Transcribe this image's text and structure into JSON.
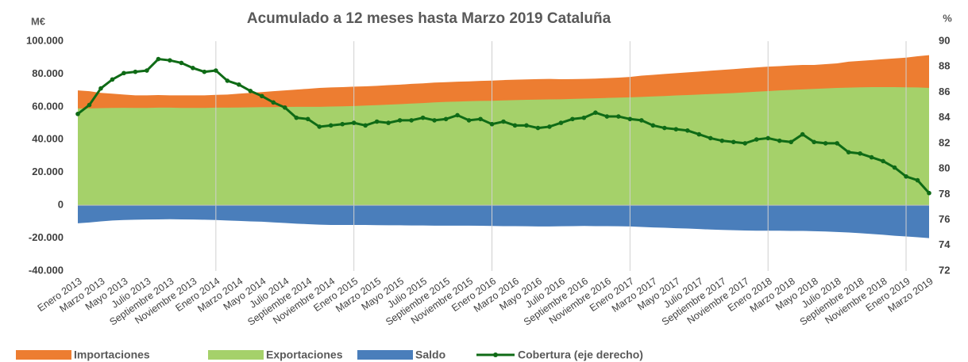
{
  "chart_data": {
    "type": "area-line",
    "title": "Acumulado a 12 meses hasta Marzo 2019 Cataluña",
    "y_label": "M€",
    "y2_label": "%",
    "categories": [
      "Enero 2013",
      null,
      "Marzo 2013",
      null,
      "Mayo 2013",
      null,
      "Julio 2013",
      null,
      "Septiembre 2013",
      null,
      "Noviembre 2013",
      null,
      "Enero 2014",
      null,
      "Marzo 2014",
      null,
      "Mayo 2014",
      null,
      "Julio 2014",
      null,
      "Septiembre 2014",
      null,
      "Noviembre 2014",
      null,
      "Enero 2015",
      null,
      "Marzo 2015",
      null,
      "Mayo 2015",
      null,
      "Julio 2015",
      null,
      "Septiembre 2015",
      null,
      "Noviembre 2015",
      null,
      "Enero 2016",
      null,
      "Marzo 2016",
      null,
      "Mayo 2016",
      null,
      "Julio 2016",
      null,
      "Septiembre 2016",
      null,
      "Noviembre 2016",
      null,
      "Enero 2017",
      null,
      "Marzo 2017",
      null,
      "Mayo 2017",
      null,
      "Julio 2017",
      null,
      "Septiembre 2017",
      null,
      "Noviembre 2017",
      null,
      "Enero 2018",
      null,
      "Marzo 2018",
      null,
      "Mayo 2018",
      null,
      "Julio 2018",
      null,
      "Septiembre 2018",
      null,
      "Noviembre 2018",
      null,
      "Enero 2019",
      null,
      "Marzo 2019"
    ],
    "series": [
      {
        "name": "Importaciones",
        "color": "#ed7d31",
        "kind": "area",
        "values": [
          70000,
          69500,
          68500,
          68000,
          67500,
          67000,
          67000,
          67200,
          67000,
          67000,
          67000,
          67000,
          67300,
          67500,
          68000,
          68500,
          69000,
          69500,
          70000,
          70500,
          71000,
          71500,
          71800,
          72000,
          72300,
          72500,
          72800,
          73200,
          73500,
          74000,
          74300,
          74800,
          75000,
          75300,
          75500,
          75800,
          76000,
          76300,
          76500,
          76700,
          76900,
          77000,
          76800,
          76900,
          77000,
          77200,
          77500,
          77800,
          78200,
          79000,
          79500,
          80000,
          80500,
          81000,
          81500,
          82000,
          82500,
          83000,
          83500,
          84000,
          84500,
          84800,
          85200,
          85500,
          85500,
          86000,
          86500,
          87500,
          88000,
          88500,
          89000,
          89500,
          90000,
          90800,
          91500
        ]
      },
      {
        "name": "Exportaciones",
        "color": "#a5d16a",
        "kind": "area",
        "values": [
          59000,
          59000,
          59200,
          59300,
          59400,
          59300,
          59300,
          59500,
          59500,
          59300,
          59300,
          59300,
          59500,
          59500,
          59600,
          59700,
          59800,
          59800,
          59900,
          60000,
          60000,
          60000,
          60200,
          60300,
          60500,
          60800,
          61000,
          61300,
          61600,
          62000,
          62300,
          62700,
          63000,
          63200,
          63400,
          63600,
          63700,
          63900,
          64100,
          64300,
          64400,
          64500,
          64600,
          64800,
          65000,
          65200,
          65400,
          65600,
          65800,
          66000,
          66300,
          66600,
          66900,
          67200,
          67500,
          67800,
          68100,
          68400,
          68800,
          69200,
          69600,
          70000,
          70300,
          70600,
          70900,
          71200,
          71500,
          71700,
          71900,
          72000,
          72000,
          72000,
          71900,
          71800,
          71500
        ]
      },
      {
        "name": "Saldo",
        "color": "#4a7ebb",
        "kind": "area",
        "values": [
          -11000,
          -10500,
          -9800,
          -9300,
          -9000,
          -8800,
          -8700,
          -8600,
          -8500,
          -8600,
          -8700,
          -8800,
          -9000,
          -9300,
          -9500,
          -9800,
          -10000,
          -10400,
          -10800,
          -11200,
          -11500,
          -11800,
          -12000,
          -12000,
          -12000,
          -12000,
          -12100,
          -12200,
          -12200,
          -12300,
          -12300,
          -12400,
          -12400,
          -12400,
          -12400,
          -12500,
          -12600,
          -12700,
          -12700,
          -12800,
          -12900,
          -12900,
          -12800,
          -12700,
          -12600,
          -12700,
          -12700,
          -12800,
          -12900,
          -13200,
          -13500,
          -13700,
          -14000,
          -14200,
          -14500,
          -14800,
          -15000,
          -15200,
          -15400,
          -15500,
          -15500,
          -15500,
          -15600,
          -15600,
          -15800,
          -16000,
          -16300,
          -16600,
          -17000,
          -17500,
          -18000,
          -18600,
          -19000,
          -19500,
          -20000
        ]
      },
      {
        "name": "Cobertura (eje derecho)",
        "color": "#0f6b16",
        "kind": "line",
        "axis": "y2",
        "values": [
          84.3,
          85.0,
          86.3,
          87.0,
          87.5,
          87.6,
          87.7,
          88.6,
          88.5,
          88.3,
          87.9,
          87.6,
          87.7,
          86.9,
          86.6,
          86.1,
          85.7,
          85.2,
          84.8,
          84.0,
          83.9,
          83.3,
          83.4,
          83.5,
          83.6,
          83.4,
          83.7,
          83.6,
          83.8,
          83.8,
          84.0,
          83.8,
          83.9,
          84.2,
          83.8,
          83.9,
          83.5,
          83.7,
          83.4,
          83.4,
          83.2,
          83.3,
          83.6,
          83.9,
          84.0,
          84.4,
          84.1,
          84.1,
          83.9,
          83.8,
          83.4,
          83.2,
          83.1,
          83.0,
          82.7,
          82.4,
          82.2,
          82.1,
          82.0,
          82.3,
          82.4,
          82.2,
          82.1,
          82.7,
          82.1,
          82.0,
          82.0,
          81.3,
          81.2,
          80.9,
          80.6,
          80.1,
          79.4,
          79.1,
          78.1
        ]
      }
    ],
    "ylim": [
      -40000,
      100000
    ],
    "yticks": [
      {
        "value": -40000,
        "label": "-40.000"
      },
      {
        "value": -20000,
        "label": "-20.000"
      },
      0,
      {
        "value": 20000,
        "label": "20.000"
      },
      {
        "value": 40000,
        "label": "40.000"
      },
      {
        "value": 60000,
        "label": "60.000"
      },
      {
        "value": 80000,
        "label": "80.000"
      },
      {
        "value": 100000,
        "label": "100.000"
      }
    ],
    "y2lim": [
      72,
      90
    ],
    "y2ticks": [
      72,
      74,
      76,
      78,
      80,
      82,
      84,
      86,
      88,
      90
    ],
    "legend": "bottom"
  }
}
